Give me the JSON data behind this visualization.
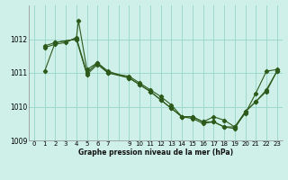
{
  "title": "Graphe pression niveau de la mer (hPa)",
  "bg_color": "#cff0e8",
  "grid_color": "#9ed8cc",
  "line_color": "#2d5a1b",
  "xlim": [
    -0.5,
    23.5
  ],
  "ylim": [
    1009.0,
    1013.0
  ],
  "yticks": [
    1009,
    1010,
    1011,
    1012
  ],
  "xtick_labels": [
    "0",
    "1",
    "2",
    "3",
    "4",
    "5",
    "6",
    "7",
    "",
    "9",
    "10",
    "11",
    "12",
    "13",
    "14",
    "15",
    "16",
    "17",
    "18",
    "19",
    "20",
    "21",
    "22",
    "23"
  ],
  "xtick_positions": [
    0,
    1,
    2,
    3,
    4,
    5,
    6,
    7,
    8,
    9,
    10,
    11,
    12,
    13,
    14,
    15,
    16,
    17,
    18,
    19,
    20,
    21,
    22,
    23
  ],
  "series": [
    {
      "x": [
        1,
        2,
        3,
        4,
        5,
        6,
        7,
        9,
        10,
        11,
        12,
        13,
        14,
        15,
        16,
        17,
        18,
        19,
        20,
        21,
        22,
        23
      ],
      "y": [
        1011.75,
        1011.85,
        1011.9,
        1012.05,
        1011.0,
        1011.3,
        1011.05,
        1010.85,
        1010.65,
        1010.45,
        1010.2,
        1009.95,
        1009.7,
        1009.65,
        1009.5,
        1009.55,
        1009.4,
        1009.35,
        1009.85,
        1010.15,
        1010.5,
        1011.05
      ]
    },
    {
      "x": [
        1,
        2,
        4,
        5,
        6,
        7,
        9,
        10,
        11,
        12,
        13,
        14,
        15,
        16,
        17,
        18,
        19,
        20,
        21,
        22,
        23
      ],
      "y": [
        1011.05,
        1011.9,
        1012.0,
        1010.95,
        1011.25,
        1011.0,
        1010.85,
        1010.65,
        1010.45,
        1010.2,
        1009.95,
        1009.7,
        1009.7,
        1009.55,
        1009.55,
        1009.4,
        1009.4,
        1009.85,
        1010.15,
        1010.45,
        1011.05
      ]
    },
    {
      "x": [
        1,
        2,
        4,
        4.2,
        5,
        6,
        7,
        9,
        10,
        11,
        12,
        13,
        14,
        15,
        16,
        17,
        18,
        19,
        20,
        21,
        22,
        23
      ],
      "y": [
        1011.8,
        1011.9,
        1012.0,
        1012.55,
        1011.1,
        1011.3,
        1011.0,
        1010.9,
        1010.7,
        1010.5,
        1010.3,
        1010.05,
        1009.7,
        1009.7,
        1009.55,
        1009.7,
        1009.6,
        1009.4,
        1009.8,
        1010.4,
        1011.05,
        1011.1
      ]
    }
  ]
}
